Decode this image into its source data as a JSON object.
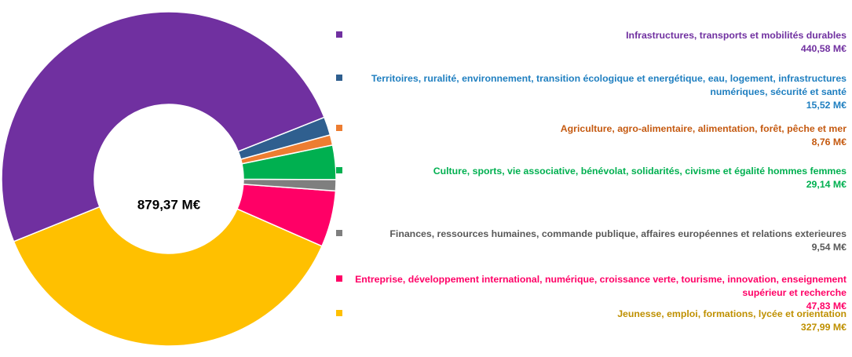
{
  "chart_data": {
    "type": "donut",
    "center_label": "879,37 M€",
    "categories": [
      "Infrastructures, transports et mobilités durables",
      "Territoires, ruralité, environnement, transition écologique et energétique, eau, logement, infrastructures numériques, sécurité et santé",
      "Agriculture, agro-alimentaire, alimentation, forêt, pêche et mer",
      "Culture, sports, vie associative, bénévolat, solidarités, civisme et égalité hommes femmes",
      "Finances, ressources humaines, commande publique, affaires européennes et relations exterieures",
      "Entreprise, développement international, numérique, croissance verte, tourisme, innovation, enseignement supérieur et recherche",
      "Jeunesse, emploi, formations, lycée et orientation"
    ],
    "values": [
      440.58,
      15.52,
      8.76,
      29.14,
      9.54,
      47.83,
      327.99
    ],
    "value_labels": [
      "440,58 M€",
      "15,52 M€",
      "8,76 M€",
      "29,14 M€",
      "9,54 M€",
      "47,83 M€",
      "327,99 M€"
    ],
    "colors": [
      "#7030a0",
      "#2f5f8f",
      "#ed7d31",
      "#00b050",
      "#7f7f7f",
      "#ff0066",
      "#ffc000"
    ],
    "text_colors": [
      "#7030a0",
      "#1f7fc0",
      "#c55a11",
      "#00b050",
      "#595959",
      "#ff0066",
      "#bf9000"
    ],
    "legend": "right"
  }
}
